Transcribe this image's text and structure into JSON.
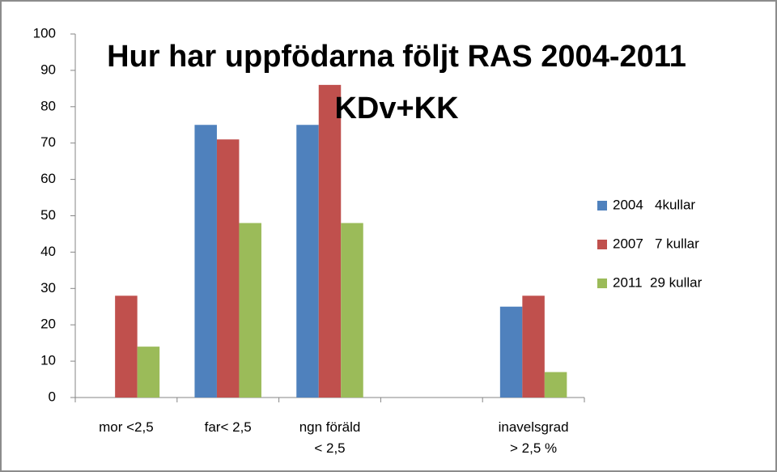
{
  "chart_data": {
    "type": "bar",
    "title": "Hur har uppfödarna följt RAS 2004-2011 KDv+KK",
    "categories": [
      "mor <2,5",
      "far< 2,5",
      "ngn föräld < 2,5",
      null,
      "inavelsgrad > 2,5 %"
    ],
    "series": [
      {
        "name": "2004   4kullar",
        "color": "#4f81bd",
        "values": [
          0,
          75,
          75,
          null,
          25
        ]
      },
      {
        "name": "2007   7 kullar",
        "color": "#c0504d",
        "values": [
          28,
          71,
          86,
          null,
          28
        ]
      },
      {
        "name": "2011  29 kullar",
        "color": "#9bbb59",
        "values": [
          14,
          48,
          48,
          null,
          7
        ]
      }
    ],
    "ylim": [
      0,
      100
    ],
    "yticks": [
      0,
      10,
      20,
      30,
      40,
      50,
      60,
      70,
      80,
      90,
      100
    ],
    "grid": false,
    "legend": "right"
  }
}
